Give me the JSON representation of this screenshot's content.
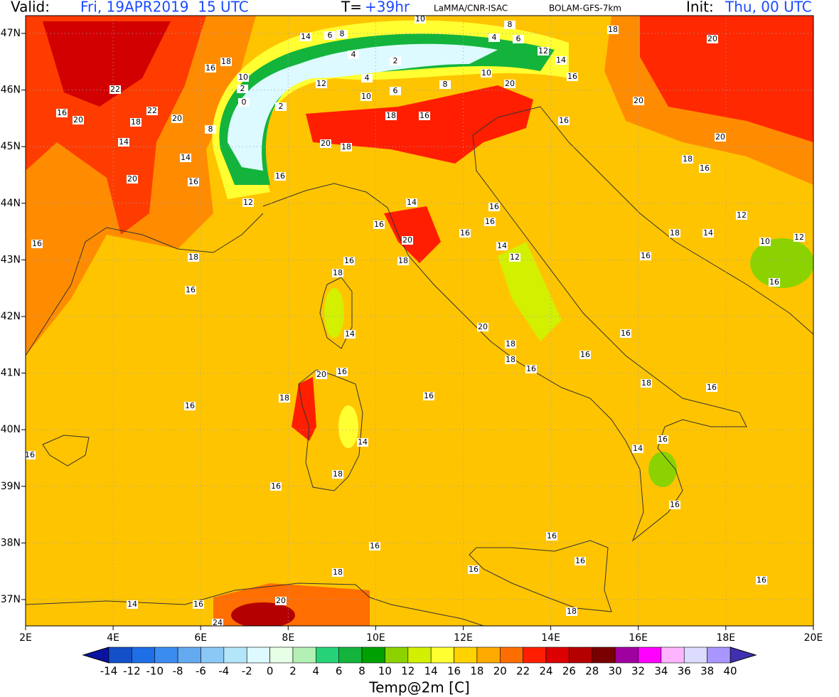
{
  "header": {
    "valid_label": "Valid:",
    "valid": "Fri, 19APR2019  15 UTC",
    "t_label": "T=",
    "t": "+39hr",
    "source": "LaMMA/CNR-ISAC",
    "model": "BOLAM-GFS-7km",
    "init_label": "Init:",
    "init": "Thu, 00 UTC"
  },
  "map": {
    "lat_labels": [
      "47N",
      "46N",
      "45N",
      "44N",
      "43N",
      "42N",
      "41N",
      "40N",
      "39N",
      "38N",
      "37N"
    ],
    "lon_labels": [
      "2E",
      "4E",
      "6E",
      "8E",
      "10E",
      "12E",
      "14E",
      "16E",
      "18E",
      "20E"
    ],
    "contour_labels": [
      14,
      6,
      8,
      10,
      8,
      4,
      6,
      18,
      20,
      12,
      14,
      18,
      16,
      10,
      4,
      2,
      4,
      2,
      22,
      12,
      10,
      6,
      8,
      10,
      20,
      16,
      0,
      2,
      16,
      20,
      18,
      22,
      20,
      18,
      16,
      16,
      20,
      8,
      20,
      18,
      14,
      20,
      14,
      18,
      16,
      20,
      16,
      16,
      12,
      14,
      16,
      16,
      16,
      16,
      18,
      14,
      12,
      12,
      10,
      16,
      18,
      20,
      18,
      16,
      14,
      12,
      16,
      18,
      16,
      16,
      14,
      20,
      16,
      18,
      18,
      16,
      16,
      20,
      16,
      18,
      16,
      16,
      18,
      16,
      14,
      16,
      14,
      16,
      18,
      16,
      16,
      16,
      16,
      16,
      18,
      16,
      16,
      20,
      14,
      16,
      24,
      18
    ]
  },
  "colorbar": {
    "title": "Temp@2m [C]",
    "labels": [
      -14,
      -12,
      -10,
      -8,
      -6,
      -4,
      -2,
      0,
      2,
      4,
      6,
      8,
      10,
      12,
      14,
      16,
      18,
      20,
      22,
      24,
      26,
      28,
      30,
      32,
      34,
      36,
      38,
      40
    ],
    "colors": [
      "#0a14a0",
      "#1450c8",
      "#1e6ee6",
      "#3c8cf0",
      "#64aaf0",
      "#8cc8f5",
      "#b4e6fa",
      "#dcfaff",
      "#e6ffe6",
      "#b4f0b4",
      "#28d278",
      "#14b43c",
      "#00a000",
      "#8cd200",
      "#d2f000",
      "#ffff32",
      "#ffd200",
      "#ffaa00",
      "#ff6e00",
      "#ff1e00",
      "#dc0000",
      "#b40000",
      "#780000",
      "#a000a0",
      "#ff00ff",
      "#ffb4ff",
      "#dcdcff",
      "#aa96ff",
      "#6450dc",
      "#4030b0"
    ]
  }
}
